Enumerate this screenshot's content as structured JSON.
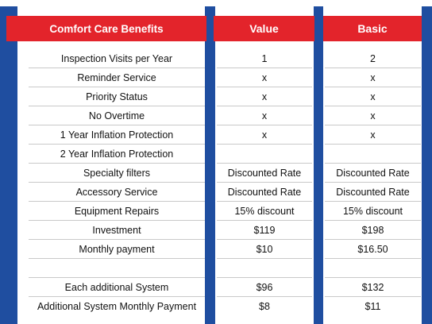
{
  "headers": {
    "features": "Comfort Care Benefits",
    "value": "Value",
    "basic": "Basic"
  },
  "rows": [
    {
      "feature": "Inspection Visits per Year",
      "value": "1",
      "basic": "2"
    },
    {
      "feature": "Reminder Service",
      "value": "x",
      "basic": "x"
    },
    {
      "feature": "Priority Status",
      "value": "x",
      "basic": "x"
    },
    {
      "feature": "No Overtime",
      "value": "x",
      "basic": "x"
    },
    {
      "feature": "1 Year Inflation Protection",
      "value": "x",
      "basic": "x"
    },
    {
      "feature": "2 Year Inflation Protection",
      "value": "",
      "basic": ""
    },
    {
      "feature": "Specialty filters",
      "value": "Discounted Rate",
      "basic": "Discounted Rate"
    },
    {
      "feature": "Accessory Service",
      "value": "Discounted Rate",
      "basic": "Discounted Rate"
    },
    {
      "feature": "Equipment Repairs",
      "value": "15% discount",
      "basic": "15% discount"
    },
    {
      "feature": "Investment",
      "value": "$119",
      "basic": "$198"
    },
    {
      "feature": "Monthly payment",
      "value": "$10",
      "basic": "$16.50"
    },
    {
      "feature": "",
      "value": "",
      "basic": ""
    },
    {
      "feature": "Each additional System",
      "value": "$96",
      "basic": "$132"
    },
    {
      "feature": "Additional System Monthly Payment",
      "value": "$8",
      "basic": "$11"
    }
  ],
  "colors": {
    "header_red": "#e3242b",
    "column_blue": "#1f4ea0"
  }
}
